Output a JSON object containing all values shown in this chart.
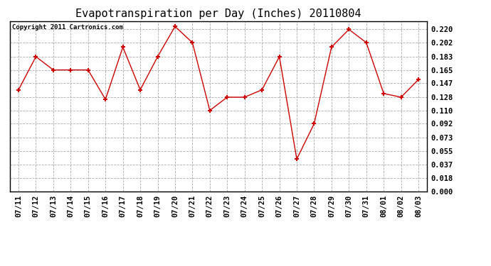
{
  "title": "Evapotranspiration per Day (Inches) 20110804",
  "copyright": "Copyright 2011 Cartronics.com",
  "x_labels": [
    "07/11",
    "07/12",
    "07/13",
    "07/14",
    "07/15",
    "07/16",
    "07/17",
    "07/18",
    "07/19",
    "07/20",
    "07/21",
    "07/22",
    "07/23",
    "07/24",
    "07/25",
    "07/26",
    "07/27",
    "07/28",
    "07/29",
    "07/30",
    "07/31",
    "08/01",
    "08/02",
    "08/03"
  ],
  "y_values": [
    0.138,
    0.183,
    0.165,
    0.165,
    0.165,
    0.125,
    0.196,
    0.138,
    0.183,
    0.224,
    0.202,
    0.11,
    0.128,
    0.128,
    0.138,
    0.183,
    0.044,
    0.092,
    0.196,
    0.22,
    0.202,
    0.133,
    0.128,
    0.152
  ],
  "line_color": "#cc0000",
  "marker": "+",
  "marker_size": 5,
  "background_color": "#ffffff",
  "grid_color": "#aaaaaa",
  "y_ticks": [
    0.0,
    0.018,
    0.037,
    0.055,
    0.073,
    0.092,
    0.11,
    0.128,
    0.147,
    0.165,
    0.183,
    0.202,
    0.22
  ],
  "ylim": [
    0.0,
    0.231
  ],
  "title_fontsize": 11,
  "tick_fontsize": 7.5,
  "copyright_fontsize": 6.5
}
